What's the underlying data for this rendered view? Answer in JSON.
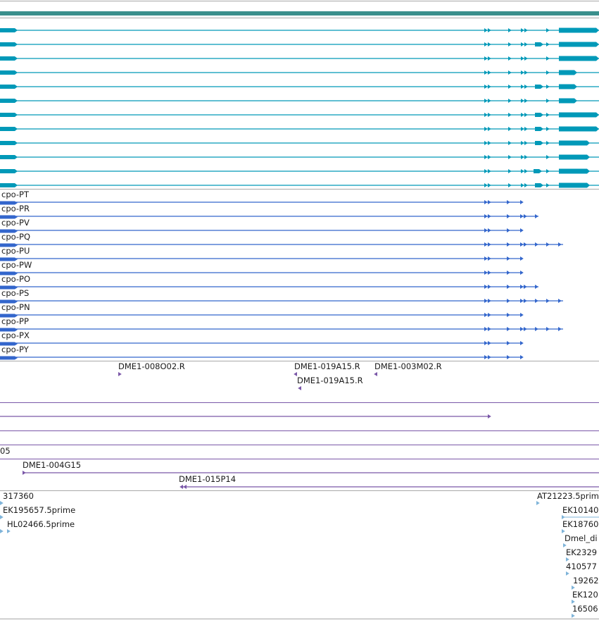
{
  "colors": {
    "border": "#a9a9a9",
    "top_bar": "#3a8f8c",
    "transcript": "#0099b8",
    "cpo": "#3366cc",
    "clone": "#7a57a8",
    "est": "#7fb4d9"
  },
  "cpo_labels": [
    "cpo-PT",
    "cpo-PR",
    "cpo-PV",
    "cpo-PQ",
    "cpo-PU",
    "cpo-PW",
    "cpo-PO",
    "cpo-PS",
    "cpo-PN",
    "cpo-PP",
    "cpo-PX",
    "cpo-PY"
  ],
  "clones": {
    "c1": "DME1-008O02.R",
    "c2": "DME1-019A15.R",
    "c3": "DME1-003M02.R",
    "c4": "DME1-019A15.R",
    "c5": "05",
    "c6": "DME1-004G15",
    "c7": "DME1-015P14"
  },
  "est": {
    "e1": "317360",
    "e2": "EK195657.5prime",
    "e3": "HL02466.5prime",
    "e4": "AT21223.5prim",
    "e5": "EK10140",
    "e6": "EK18760",
    "e7": "Dmel_di",
    "e8": "EK2329",
    "e9": "410577",
    "e10": "19262",
    "e11": "EK120",
    "e12": "16506"
  }
}
